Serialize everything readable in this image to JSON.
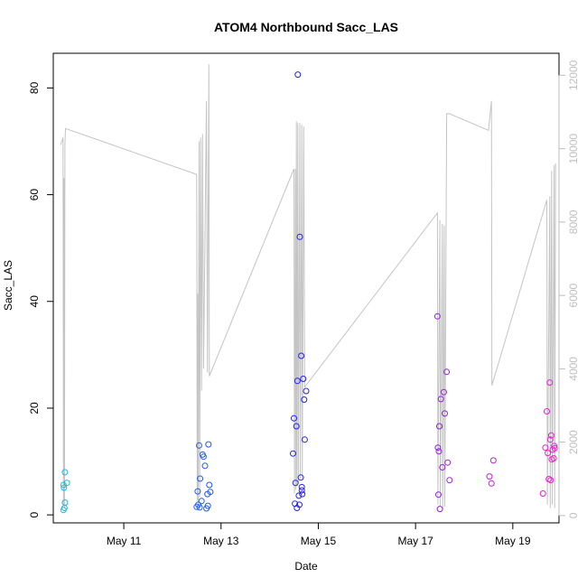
{
  "chart_data": {
    "type": "scatter",
    "title": "ATOM4 Northbound Sacc_LAS",
    "xlabel": "Date",
    "ylabel": "Sacc_LAS",
    "xlim": [
      9.55,
      19.95
    ],
    "ylim": [
      -1.5,
      86.5
    ],
    "y2lim": [
      -200,
      12600
    ],
    "x_ticks": [
      11,
      13,
      15,
      17,
      19
    ],
    "x_tick_labels": [
      "May 11",
      "May 13",
      "May 15",
      "May 17",
      "May 19"
    ],
    "y_ticks": [
      0,
      20,
      40,
      60,
      80
    ],
    "y_tick_labels": [
      "0",
      "20",
      "40",
      "60",
      "80"
    ],
    "y2_ticks": [
      0,
      2000,
      4000,
      6000,
      8000,
      10000,
      12000
    ],
    "y2_tick_labels": [
      "0",
      "2000",
      "4000",
      "6000",
      "8000",
      "10000",
      "12000"
    ],
    "colors": {
      "early": "#1fb8e6",
      "mid": "#2222ee",
      "late": "#ee22cc",
      "line": "#c4c4c4",
      "frame": "#000000"
    },
    "points": [
      {
        "x": 9.79,
        "y": 8.0
      },
      {
        "x": 9.76,
        "y": 5.6
      },
      {
        "x": 9.83,
        "y": 6.0
      },
      {
        "x": 9.77,
        "y": 5.1
      },
      {
        "x": 9.79,
        "y": 2.3
      },
      {
        "x": 9.78,
        "y": 1.3
      },
      {
        "x": 9.76,
        "y": 0.9
      },
      {
        "x": 12.53,
        "y": 1.9
      },
      {
        "x": 12.5,
        "y": 1.5
      },
      {
        "x": 12.56,
        "y": 1.4
      },
      {
        "x": 12.52,
        "y": 4.4
      },
      {
        "x": 12.55,
        "y": 13.0
      },
      {
        "x": 12.57,
        "y": 6.8
      },
      {
        "x": 12.6,
        "y": 2.6
      },
      {
        "x": 12.62,
        "y": 11.3
      },
      {
        "x": 12.64,
        "y": 10.9
      },
      {
        "x": 12.67,
        "y": 9.2
      },
      {
        "x": 12.7,
        "y": 1.2
      },
      {
        "x": 12.72,
        "y": 3.9
      },
      {
        "x": 12.74,
        "y": 13.2
      },
      {
        "x": 12.76,
        "y": 5.6
      },
      {
        "x": 12.78,
        "y": 4.3
      },
      {
        "x": 12.73,
        "y": 1.7
      },
      {
        "x": 14.48,
        "y": 11.5
      },
      {
        "x": 14.5,
        "y": 18.1
      },
      {
        "x": 14.52,
        "y": 2.1
      },
      {
        "x": 14.53,
        "y": 6.0
      },
      {
        "x": 14.55,
        "y": 16.6
      },
      {
        "x": 14.56,
        "y": 1.3
      },
      {
        "x": 14.57,
        "y": 25.1
      },
      {
        "x": 14.58,
        "y": 82.5
      },
      {
        "x": 14.62,
        "y": 52.1
      },
      {
        "x": 14.6,
        "y": 3.6
      },
      {
        "x": 14.61,
        "y": 1.9
      },
      {
        "x": 14.64,
        "y": 7.0
      },
      {
        "x": 14.65,
        "y": 29.8
      },
      {
        "x": 14.66,
        "y": 4.6
      },
      {
        "x": 14.67,
        "y": 3.9
      },
      {
        "x": 14.69,
        "y": 25.5
      },
      {
        "x": 14.71,
        "y": 21.6
      },
      {
        "x": 14.72,
        "y": 14.1
      },
      {
        "x": 14.75,
        "y": 23.2
      },
      {
        "x": 14.66,
        "y": 5.2
      },
      {
        "x": 17.45,
        "y": 37.2
      },
      {
        "x": 17.46,
        "y": 12.6
      },
      {
        "x": 17.48,
        "y": 11.9
      },
      {
        "x": 17.49,
        "y": 16.6
      },
      {
        "x": 17.47,
        "y": 3.8
      },
      {
        "x": 17.5,
        "y": 1.1
      },
      {
        "x": 17.52,
        "y": 21.7
      },
      {
        "x": 17.55,
        "y": 8.9
      },
      {
        "x": 17.58,
        "y": 23.0
      },
      {
        "x": 17.6,
        "y": 19.0
      },
      {
        "x": 17.64,
        "y": 26.8
      },
      {
        "x": 17.66,
        "y": 9.8
      },
      {
        "x": 17.7,
        "y": 6.5
      },
      {
        "x": 18.52,
        "y": 7.2
      },
      {
        "x": 18.56,
        "y": 5.9
      },
      {
        "x": 18.6,
        "y": 10.2
      },
      {
        "x": 19.62,
        "y": 4.0
      },
      {
        "x": 19.67,
        "y": 12.6
      },
      {
        "x": 19.7,
        "y": 19.4
      },
      {
        "x": 19.72,
        "y": 11.6
      },
      {
        "x": 19.74,
        "y": 6.7
      },
      {
        "x": 19.76,
        "y": 24.8
      },
      {
        "x": 19.77,
        "y": 14.1
      },
      {
        "x": 19.78,
        "y": 6.5
      },
      {
        "x": 19.79,
        "y": 14.9
      },
      {
        "x": 19.8,
        "y": 10.4
      },
      {
        "x": 19.82,
        "y": 12.2
      },
      {
        "x": 19.84,
        "y": 10.6
      },
      {
        "x": 19.85,
        "y": 12.9
      },
      {
        "x": 19.86,
        "y": 12.5
      }
    ],
    "line_series": {
      "axis": "right",
      "points": [
        [
          9.7,
          10100
        ],
        [
          9.75,
          10300
        ],
        [
          9.76,
          300
        ],
        [
          9.77,
          9200
        ],
        [
          9.78,
          200
        ],
        [
          9.79,
          10100
        ],
        [
          9.8,
          10550
        ],
        [
          12.5,
          9300
        ],
        [
          12.51,
          400
        ],
        [
          12.52,
          6050
        ],
        [
          12.53,
          300
        ],
        [
          12.55,
          10200
        ],
        [
          12.56,
          500
        ],
        [
          12.58,
          10300
        ],
        [
          12.6,
          3400
        ],
        [
          12.62,
          10400
        ],
        [
          12.64,
          4000
        ],
        [
          12.7,
          11300
        ],
        [
          12.72,
          3900
        ],
        [
          12.75,
          12300
        ],
        [
          12.76,
          3800
        ],
        [
          14.5,
          9450
        ],
        [
          14.51,
          600
        ],
        [
          14.53,
          9450
        ],
        [
          14.54,
          700
        ],
        [
          14.55,
          10750
        ],
        [
          14.56,
          800
        ],
        [
          14.58,
          10700
        ],
        [
          14.59,
          900
        ],
        [
          14.62,
          10700
        ],
        [
          14.63,
          1000
        ],
        [
          14.66,
          10650
        ],
        [
          14.67,
          1000
        ],
        [
          14.7,
          10600
        ],
        [
          14.72,
          3500
        ],
        [
          17.45,
          8250
        ],
        [
          17.46,
          300
        ],
        [
          17.5,
          8050
        ],
        [
          17.51,
          250
        ],
        [
          17.55,
          7950
        ],
        [
          17.56,
          200
        ],
        [
          17.59,
          7900
        ],
        [
          17.6,
          250
        ],
        [
          17.64,
          10950
        ],
        [
          17.7,
          10950
        ],
        [
          18.5,
          10500
        ],
        [
          18.56,
          11300
        ],
        [
          18.57,
          3550
        ],
        [
          19.7,
          8600
        ],
        [
          19.71,
          300
        ],
        [
          19.76,
          8700
        ],
        [
          19.77,
          200
        ],
        [
          19.8,
          9400
        ],
        [
          19.81,
          300
        ],
        [
          19.85,
          9550
        ],
        [
          19.86,
          200
        ],
        [
          19.88,
          9600
        ]
      ]
    }
  }
}
